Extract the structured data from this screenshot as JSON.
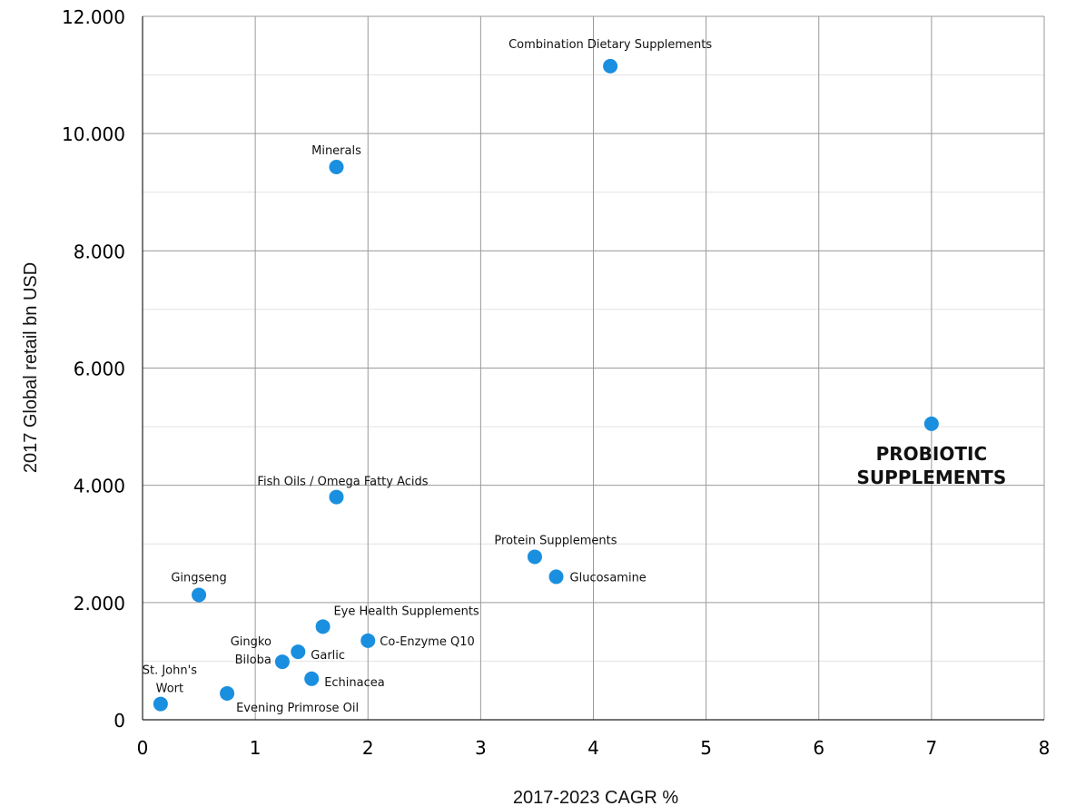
{
  "chart_data": {
    "type": "scatter",
    "xlabel": "2017-2023 CAGR %",
    "ylabel": "2017 Global retail bn USD",
    "xlim": [
      0,
      8
    ],
    "ylim": [
      0,
      12000
    ],
    "x_ticks": [
      "0",
      "1",
      "2",
      "3",
      "4",
      "5",
      "6",
      "7",
      "8"
    ],
    "y_ticks": [
      "0",
      "2.000",
      "4.000",
      "6.000",
      "8.000",
      "10.000",
      "12.000"
    ],
    "marker_color": "#1a8fdf",
    "grid": true,
    "points": [
      {
        "label": "Combination Dietary Supplements",
        "x": 4.15,
        "y": 11150
      },
      {
        "label": "Minerals",
        "x": 1.72,
        "y": 9430
      },
      {
        "label": "PROBIOTIC SUPPLEMENTS",
        "x": 7.0,
        "y": 5050
      },
      {
        "label": "Fish Oils / Omega Fatty Acids",
        "x": 1.72,
        "y": 3800
      },
      {
        "label": "Protein Supplements",
        "x": 3.48,
        "y": 2780
      },
      {
        "label": "Glucosamine",
        "x": 3.67,
        "y": 2440
      },
      {
        "label": "Gingseng",
        "x": 0.5,
        "y": 2130
      },
      {
        "label": "Eye Health Supplements",
        "x": 1.6,
        "y": 1590
      },
      {
        "label": "Co-Enzyme Q10",
        "x": 2.0,
        "y": 1350
      },
      {
        "label": "Garlic",
        "x": 1.38,
        "y": 1160
      },
      {
        "label": "Gingko Biloba",
        "x": 1.24,
        "y": 990
      },
      {
        "label": "Echinacea",
        "x": 1.5,
        "y": 700
      },
      {
        "label": "Evening Primrose Oil",
        "x": 0.75,
        "y": 450
      },
      {
        "label": "St. John's Wort",
        "x": 0.16,
        "y": 270
      }
    ]
  }
}
